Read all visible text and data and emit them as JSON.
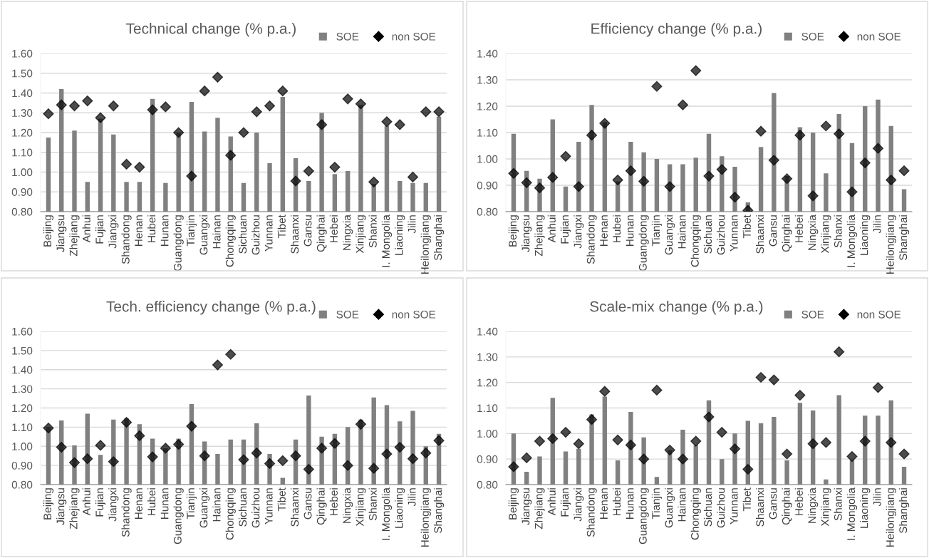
{
  "chart_data": [
    {
      "type": "bar",
      "title": "Technical change (% p.a.)",
      "legend": "top right",
      "grid": "y",
      "categories": [
        "Beijing",
        "Jiangsu",
        "Zhejiang",
        "Anhui",
        "Fujian",
        "Jiangxi",
        "Shandong",
        "Henan",
        "Hubei",
        "Hunan",
        "Guangdong",
        "Tianjin",
        "Guangxi",
        "Hainan",
        "Chongqing",
        "Sichuan",
        "Guizhou",
        "Yunnan",
        "Tibet",
        "Shaanxi",
        "Gansu",
        "Qinghai",
        "Hebei",
        "Ningxia",
        "Xinjiang",
        "Shanxi",
        "I. Mongolia",
        "Liaoning",
        "Jilin",
        "Heilongjiang",
        "Shanghai"
      ],
      "ylim": [
        0.8,
        1.6
      ],
      "yticks": [
        {
          "value": 0.8,
          "label": "0.80"
        },
        {
          "value": 0.9,
          "label": "0.90"
        },
        {
          "value": 1.0,
          "label": "1.00"
        },
        {
          "value": 1.1,
          "label": "1.10"
        },
        {
          "value": 1.2,
          "label": "1.20"
        },
        {
          "value": 1.3,
          "label": "1.30"
        },
        {
          "value": 1.4,
          "label": "1.40"
        },
        {
          "value": 1.5,
          "label": "1.50"
        },
        {
          "value": 1.6,
          "label": "1.60"
        }
      ],
      "series": [
        {
          "name": "SOE",
          "color": "#808080",
          "values": [
            1.175,
            1.42,
            1.21,
            0.95,
            1.27,
            1.19,
            0.95,
            0.95,
            1.37,
            0.945,
            1.2,
            1.355,
            1.205,
            1.275,
            1.18,
            0.945,
            1.2,
            1.045,
            1.38,
            1.07,
            0.955,
            1.3,
            0.99,
            1.005,
            1.34,
            0.94,
            1.235,
            0.955,
            0.945,
            0.945,
            1.28
          ]
        },
        {
          "name": "non SOE",
          "type": "scatter",
          "marker": "diamond",
          "color": "#000000",
          "values": [
            1.295,
            1.34,
            1.335,
            1.36,
            1.275,
            1.335,
            1.04,
            1.025,
            1.315,
            1.33,
            1.2,
            0.98,
            1.41,
            1.48,
            1.085,
            1.2,
            1.305,
            1.335,
            1.41,
            0.955,
            1.005,
            1.24,
            1.025,
            1.37,
            1.345,
            0.95,
            1.255,
            1.24,
            0.975,
            1.305,
            1.305
          ]
        }
      ]
    },
    {
      "type": "bar",
      "title": "Efficiency change (% p.a.)",
      "legend": "top right",
      "grid": "y",
      "categories": [
        "Beijing",
        "Jiangsu",
        "Zhejiang",
        "Anhui",
        "Fujian",
        "Jiangxi",
        "Shandong",
        "Henan",
        "Hubei",
        "Hunan",
        "Guangdong",
        "Tianjin",
        "Guangxi",
        "Hainan",
        "Chongqing",
        "Sichuan",
        "Guizhou",
        "Yunnan",
        "Tibet",
        "Shaanxi",
        "Gansu",
        "Qinghai",
        "Hebei",
        "Ningxia",
        "Xinjiang",
        "Shanxi",
        "I. Mongolia",
        "Liaoning",
        "Jilin",
        "Heilongjiang",
        "Shanghai"
      ],
      "ylim": [
        0.8,
        1.4
      ],
      "yticks": [
        {
          "value": 0.8,
          "label": "0.80"
        },
        {
          "value": 0.9,
          "label": "0.90"
        },
        {
          "value": 1.0,
          "label": "1.00"
        },
        {
          "value": 1.1,
          "label": "1.10"
        },
        {
          "value": 1.2,
          "label": "1.20"
        },
        {
          "value": 1.3,
          "label": "1.30"
        },
        {
          "value": 1.4,
          "label": "1.40"
        }
      ],
      "series": [
        {
          "name": "SOE",
          "color": "#808080",
          "values": [
            1.095,
            0.955,
            0.925,
            1.15,
            0.895,
            1.065,
            1.205,
            1.14,
            0.915,
            1.065,
            1.025,
            1.0,
            0.98,
            0.98,
            1.005,
            1.095,
            1.01,
            0.97,
            0.835,
            1.045,
            1.25,
            0.935,
            1.12,
            1.1,
            0.945,
            1.17,
            1.06,
            1.2,
            1.225,
            1.125,
            0.885
          ]
        },
        {
          "name": "non SOE",
          "type": "scatter",
          "marker": "diamond",
          "color": "#000000",
          "values": [
            0.945,
            0.91,
            0.89,
            0.93,
            1.01,
            0.895,
            1.09,
            1.135,
            0.92,
            0.955,
            0.915,
            1.275,
            0.895,
            1.205,
            1.335,
            0.935,
            0.96,
            0.855,
            0.805,
            1.105,
            0.995,
            0.925,
            1.09,
            0.86,
            1.125,
            1.095,
            0.875,
            0.985,
            1.04,
            0.92,
            0.955
          ]
        }
      ]
    },
    {
      "type": "bar",
      "title": "Tech. efficiency change (% p.a.)",
      "legend": "top right",
      "grid": "y",
      "categories": [
        "Beijing",
        "Jiangsu",
        "Zhejiang",
        "Anhui",
        "Fujian",
        "Jiangxi",
        "Shandong",
        "Henan",
        "Hubei",
        "Hunan",
        "Guangdong",
        "Tianjin",
        "Guangxi",
        "Hainan",
        "Chongqing",
        "Sichuan",
        "Guizhou",
        "Yunnan",
        "Tibet",
        "Shaanxi",
        "Gansu",
        "Qinghai",
        "Hebei",
        "Ningxia",
        "Xinjiang",
        "Shanxi",
        "I. Mongolia",
        "Liaoning",
        "Jilin",
        "Heilongjiang",
        "Shanghai"
      ],
      "ylim": [
        0.8,
        1.6
      ],
      "yticks": [
        {
          "value": 0.8,
          "label": "0.80"
        },
        {
          "value": 0.9,
          "label": "0.90"
        },
        {
          "value": 1.0,
          "label": "1.00"
        },
        {
          "value": 1.1,
          "label": "1.10"
        },
        {
          "value": 1.2,
          "label": "1.20"
        },
        {
          "value": 1.3,
          "label": "1.30"
        },
        {
          "value": 1.4,
          "label": "1.40"
        },
        {
          "value": 1.5,
          "label": "1.50"
        },
        {
          "value": 1.6,
          "label": "1.60"
        }
      ],
      "series": [
        {
          "name": "SOE",
          "color": "#808080",
          "values": [
            1.1,
            1.135,
            1.005,
            1.17,
            0.955,
            1.14,
            1.145,
            1.115,
            1.04,
            0.99,
            1.04,
            1.22,
            1.025,
            0.96,
            1.035,
            1.035,
            1.12,
            0.96,
            0.835,
            1.035,
            1.265,
            1.05,
            1.065,
            1.1,
            1.14,
            1.255,
            1.215,
            1.13,
            1.185,
            1.0,
            1.065
          ]
        },
        {
          "name": "non SOE",
          "type": "scatter",
          "marker": "diamond",
          "color": "#000000",
          "values": [
            1.095,
            0.995,
            0.915,
            0.935,
            1.005,
            0.92,
            1.125,
            1.055,
            0.945,
            0.99,
            1.01,
            1.105,
            0.95,
            1.425,
            1.48,
            0.93,
            0.965,
            0.91,
            0.925,
            0.95,
            0.88,
            0.99,
            1.015,
            0.9,
            1.115,
            0.885,
            0.96,
            0.995,
            0.935,
            0.965,
            1.03
          ]
        }
      ]
    },
    {
      "type": "bar",
      "title": "Scale-mix change (% p.a.)",
      "legend": "top right",
      "grid": "y",
      "categories": [
        "Beijing",
        "Jiangsu",
        "Zhejiang",
        "Anhui",
        "Fujian",
        "Jiangxi",
        "Shandong",
        "Henan",
        "Hubei",
        "Hunan",
        "Guangdong",
        "Tianjin",
        "Guangxi",
        "Hainan",
        "Chongqing",
        "Sichuan",
        "Guizhou",
        "Yunnan",
        "Tibet",
        "Shaanxi",
        "Gansu",
        "Qinghai",
        "Hebei",
        "Ningxia",
        "Xinjiang",
        "Shanxi",
        "I. Mongolia",
        "Liaoning",
        "Jilin",
        "Heilongjiang",
        "Shanghai"
      ],
      "ylim": [
        0.8,
        1.4
      ],
      "yticks": [
        {
          "value": 0.8,
          "label": "0.80"
        },
        {
          "value": 0.9,
          "label": "0.90"
        },
        {
          "value": 1.0,
          "label": "1.00"
        },
        {
          "value": 1.1,
          "label": "1.10"
        },
        {
          "value": 1.2,
          "label": "1.20"
        },
        {
          "value": 1.3,
          "label": "1.30"
        },
        {
          "value": 1.4,
          "label": "1.40"
        }
      ],
      "series": [
        {
          "name": "SOE",
          "color": "#808080",
          "values": [
            1.0,
            0.85,
            0.91,
            1.14,
            0.93,
            0.94,
            1.075,
            1.145,
            0.895,
            1.085,
            0.985,
            0.83,
            0.935,
            1.015,
            0.955,
            1.13,
            0.9,
            1.0,
            1.05,
            1.04,
            1.065,
            0.895,
            1.12,
            1.09,
            0.82,
            1.15,
            0.895,
            1.07,
            1.07,
            1.13,
            0.87
          ]
        },
        {
          "name": "non SOE",
          "type": "scatter",
          "marker": "diamond",
          "color": "#000000",
          "values": [
            0.87,
            0.905,
            0.97,
            0.98,
            1.005,
            0.96,
            1.055,
            1.165,
            0.975,
            0.955,
            0.9,
            1.17,
            0.935,
            0.9,
            0.97,
            1.065,
            1.005,
            0.94,
            0.86,
            1.22,
            1.21,
            0.92,
            1.15,
            0.96,
            0.965,
            1.32,
            0.91,
            0.97,
            1.18,
            0.965,
            0.92
          ]
        }
      ]
    }
  ]
}
